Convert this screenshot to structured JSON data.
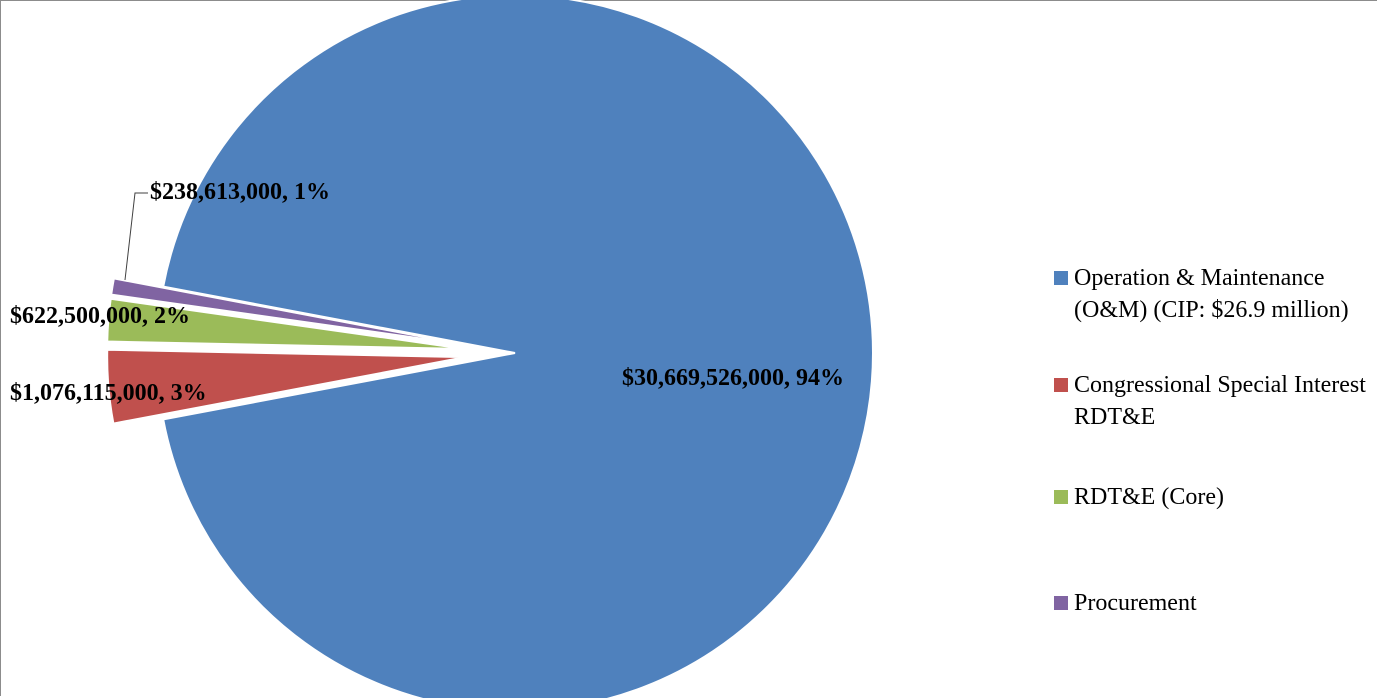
{
  "chart_data": {
    "type": "pie",
    "title": "",
    "legend_position": "right",
    "slices": [
      {
        "name": "Operation & Maintenance (O&M) (CIP: $26.9 million)",
        "value": 30669526000,
        "percent": 94,
        "label": "$30,669,526,000, 94%",
        "color": "#4f81bd",
        "exploded": false
      },
      {
        "name": "Congressional Special Interest RDT&E",
        "value": 1076115000,
        "percent": 3,
        "label": "$1,076,115,000, 3%",
        "color": "#c0504d",
        "exploded": true
      },
      {
        "name": "RDT&E (Core)",
        "value": 622500000,
        "percent": 2,
        "label": "$622,500,000, 2%",
        "color": "#9bbb59",
        "exploded": true
      },
      {
        "name": "Procurement",
        "value": 238613000,
        "percent": 1,
        "label": "$238,613,000, 1%",
        "color": "#8064a2",
        "exploded": true
      }
    ]
  }
}
